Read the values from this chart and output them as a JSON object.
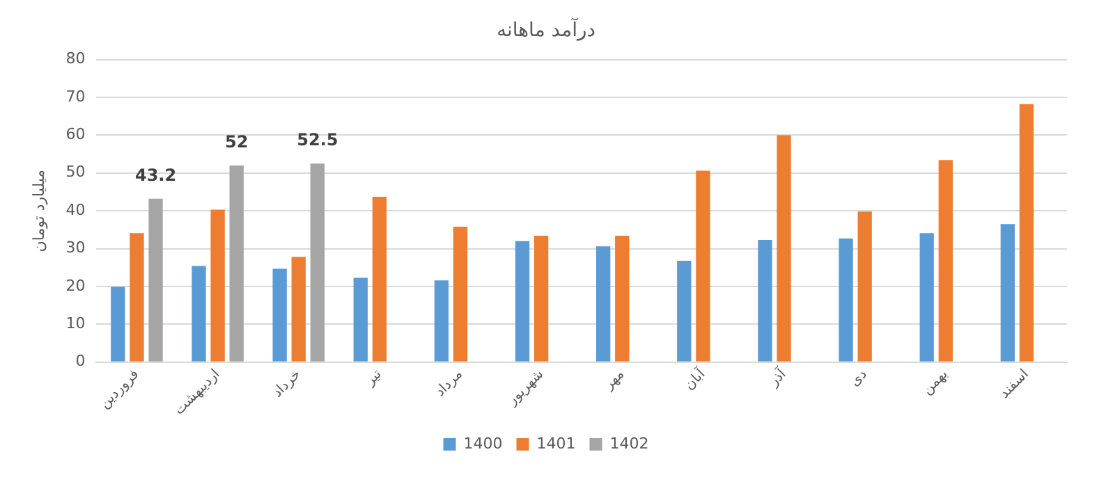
{
  "chart_data": {
    "type": "bar",
    "title": "درآمد ماهانه",
    "ylabel": "میلیارد تومان",
    "categories": [
      "فروردین",
      "اردیبهشت",
      "خرداد",
      "تیر",
      "مرداد",
      "شهریور",
      "مهر",
      "آبان",
      "آذر",
      "دی",
      "بهمن",
      "اسفند"
    ],
    "series": [
      {
        "name": "1400",
        "color": "#5b9bd5",
        "values": [
          19.9,
          25.4,
          24.7,
          22.3,
          21.6,
          32.0,
          30.6,
          26.8,
          32.3,
          32.7,
          34.1,
          36.5
        ]
      },
      {
        "name": "1401",
        "color": "#ed7d31",
        "values": [
          34.1,
          40.3,
          27.8,
          43.7,
          35.8,
          33.4,
          33.4,
          50.6,
          60.0,
          39.8,
          53.4,
          68.2
        ]
      },
      {
        "name": "1402",
        "color": "#a5a5a5",
        "values": [
          43.2,
          52,
          52.5,
          null,
          null,
          null,
          null,
          null,
          null,
          null,
          null,
          null
        ],
        "value_labels": [
          "43.2",
          "52",
          "52.5",
          null,
          null,
          null,
          null,
          null,
          null,
          null,
          null,
          null
        ]
      }
    ],
    "ylim": [
      0,
      80
    ],
    "yticks": [
      0,
      10,
      20,
      30,
      40,
      50,
      60,
      70,
      80
    ],
    "grid": "y",
    "legend": "bottom"
  }
}
